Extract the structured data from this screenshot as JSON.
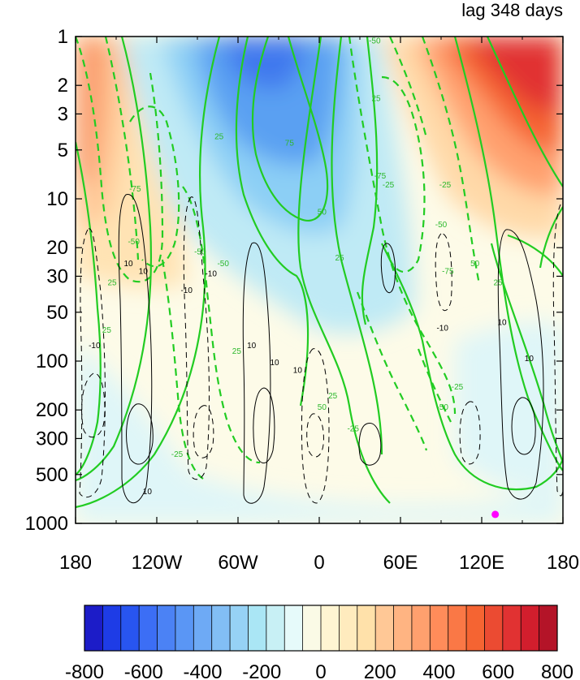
{
  "chart_data": {
    "type": "heatmap",
    "title": "lag 348 days",
    "x_axis": {
      "range": [
        -180,
        180
      ],
      "ticks": [
        -180,
        -120,
        -60,
        0,
        60,
        120,
        180
      ],
      "tick_labels": [
        "180",
        "120W",
        "60W",
        "0",
        "60E",
        "120E",
        "180"
      ]
    },
    "y_axis": {
      "scale": "log",
      "inverted": true,
      "range": [
        1,
        1000
      ],
      "ticks": [
        1,
        2,
        3,
        5,
        10,
        20,
        30,
        50,
        100,
        200,
        300,
        500,
        1000
      ],
      "tick_labels": [
        "1",
        "2",
        "3",
        "5",
        "10",
        "20",
        "30",
        "50",
        "100",
        "200",
        "300",
        "500",
        "1000"
      ]
    },
    "colorbar": {
      "min": -800,
      "max": 800,
      "tick_values": [
        -800,
        -600,
        -400,
        -200,
        0,
        200,
        400,
        600,
        800
      ],
      "tick_labels": [
        "-800",
        "-600",
        "-400",
        "-200",
        "0",
        "200",
        "400",
        "600",
        "800"
      ],
      "colors": [
        "#1c1cc8",
        "#1e3ce6",
        "#2855f0",
        "#3c6ef5",
        "#4b82f5",
        "#5a96f5",
        "#6eaaf5",
        "#82bef5",
        "#96d2f5",
        "#aae6f5",
        "#c8f0f5",
        "#e6fafa",
        "#fafae6",
        "#fff5d2",
        "#ffebbe",
        "#ffe1aa",
        "#ffc896",
        "#ffb482",
        "#ffa06e",
        "#ff8c5a",
        "#fa7846",
        "#f56432",
        "#eb4b32",
        "#e13232",
        "#d21e2d",
        "#b41428"
      ]
    },
    "filled_field_features": [
      {
        "kind": "high",
        "lon": 140,
        "p": 1.7,
        "value": 620
      },
      {
        "kind": "low",
        "lon": -35,
        "p": 1.5,
        "value": -560
      },
      {
        "kind": "high",
        "lon": -165,
        "p": 3,
        "value": 340
      },
      {
        "kind": "low",
        "lon": 10,
        "p": 150,
        "value": -120
      }
    ],
    "green_contours": {
      "labels": [
        "-75",
        "-50",
        "-25",
        "25",
        "50",
        "75"
      ],
      "label_points": [
        {
          "text": "-75",
          "lon": -136,
          "p": 9
        },
        {
          "text": "-50",
          "lon": -137,
          "p": 19
        },
        {
          "text": "25",
          "lon": -153,
          "p": 34
        },
        {
          "text": "25",
          "lon": -157,
          "p": 67
        },
        {
          "text": "25",
          "lon": -74,
          "p": 4.3
        },
        {
          "text": "75",
          "lon": -22,
          "p": 4.7
        },
        {
          "text": "50",
          "lon": 2,
          "p": 12.5
        },
        {
          "text": "25",
          "lon": 15,
          "p": 24
        },
        {
          "text": "-50",
          "lon": 41,
          "p": 1.1
        },
        {
          "text": "25",
          "lon": 42,
          "p": 2.5
        },
        {
          "text": "-75",
          "lon": 45,
          "p": 7.5
        },
        {
          "text": "-25",
          "lon": 51,
          "p": 8.5
        },
        {
          "text": "-25",
          "lon": 93,
          "p": 8.5
        },
        {
          "text": "-50",
          "lon": 90,
          "p": 15
        },
        {
          "text": "-75",
          "lon": 95,
          "p": 29
        },
        {
          "text": "50",
          "lon": 115,
          "p": 26
        },
        {
          "text": "25",
          "lon": 132,
          "p": 34
        },
        {
          "text": "-25",
          "lon": 102,
          "p": 150
        },
        {
          "text": "-50",
          "lon": 91,
          "p": 200
        },
        {
          "text": "-25",
          "lon": 25,
          "p": 270
        },
        {
          "text": "50",
          "lon": 2,
          "p": 200
        },
        {
          "text": "25",
          "lon": 10,
          "p": 170
        },
        {
          "text": "-50",
          "lon": -88,
          "p": 22
        },
        {
          "text": "-50",
          "lon": -71,
          "p": 26
        },
        {
          "text": "25",
          "lon": -61,
          "p": 90
        },
        {
          "text": "-25",
          "lon": -105,
          "p": 390
        }
      ]
    },
    "black_contours": {
      "labels": [
        "-10",
        "10"
      ],
      "label_points": [
        {
          "text": "10",
          "lon": -141,
          "p": 26
        },
        {
          "text": "10",
          "lon": -130,
          "p": 29
        },
        {
          "text": "-10",
          "lon": -98,
          "p": 38
        },
        {
          "text": "-10",
          "lon": -80,
          "p": 30
        },
        {
          "text": "-10",
          "lon": -166,
          "p": 83
        },
        {
          "text": "10",
          "lon": -50,
          "p": 83
        },
        {
          "text": "10",
          "lon": -33,
          "p": 106
        },
        {
          "text": "10",
          "lon": -16,
          "p": 118
        },
        {
          "text": "10",
          "lon": -127,
          "p": 660
        },
        {
          "text": "-10",
          "lon": 91,
          "p": 65
        },
        {
          "text": "10",
          "lon": 135,
          "p": 60
        },
        {
          "text": "10",
          "lon": 155,
          "p": 100
        }
      ]
    },
    "marker": {
      "lon": 130,
      "p": 880,
      "color": "#ff00ff"
    }
  }
}
